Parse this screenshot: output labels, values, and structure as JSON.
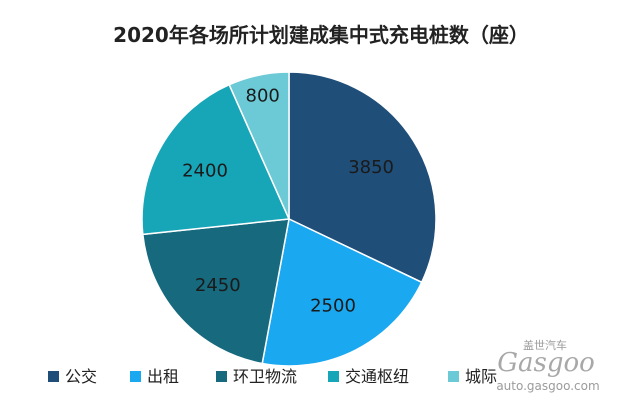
{
  "chart_data": {
    "type": "pie",
    "title": "2020年各场所计划建成集中式充电桩数（座）",
    "categories": [
      "公交",
      "出租",
      "环卫物流",
      "交通枢纽",
      "城际"
    ],
    "values": [
      3850,
      2500,
      2450,
      2400,
      800
    ],
    "data_labels": [
      "3850",
      "2500",
      "2450",
      "2400",
      "800"
    ],
    "colors": [
      "#1f4e79",
      "#1aa8f0",
      "#17697e",
      "#17a5b8",
      "#6ccad6"
    ],
    "legend_position": "bottom"
  },
  "watermark": {
    "brand_cn": "盖世汽车",
    "logo": "Gasgoo",
    "url": "auto.gasgoo.com"
  }
}
